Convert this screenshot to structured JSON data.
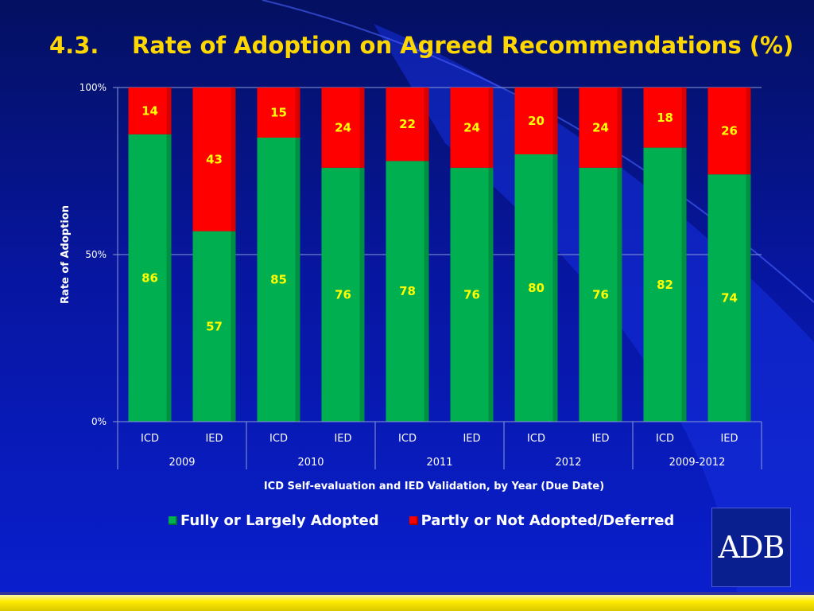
{
  "slide": {
    "number": "4.3.",
    "title": "Rate of Adoption on Agreed Recommendations (%)"
  },
  "colors": {
    "adopted": "#00b050",
    "not_adopted": "#ff0000",
    "title": "#ffd700",
    "value_label": "#ffff00"
  },
  "chart_data": {
    "type": "bar",
    "stacked": true,
    "title": "Rate of Adoption on Agreed Recommendations (%)",
    "ylabel": "Rate of Adoption",
    "xlabel": "ICD Self-evaluation and IED Validation, by Year (Due Date)",
    "ylim": [
      0,
      100
    ],
    "y_ticks": [
      "0%",
      "50%",
      "100%"
    ],
    "categories": [
      "ICD",
      "IED",
      "ICD",
      "IED",
      "ICD",
      "IED",
      "ICD",
      "IED",
      "ICD",
      "IED"
    ],
    "groups": [
      {
        "label": "2009",
        "span": 2
      },
      {
        "label": "2010",
        "span": 2
      },
      {
        "label": "2011",
        "span": 2
      },
      {
        "label": "2012",
        "span": 2
      },
      {
        "label": "2009-2012",
        "span": 2
      }
    ],
    "series": [
      {
        "name": "Fully or Largely Adopted",
        "color": "#00b050",
        "values": [
          86,
          57,
          85,
          76,
          78,
          76,
          80,
          76,
          82,
          74
        ]
      },
      {
        "name": "Partly or Not Adopted/Deferred",
        "color": "#ff0000",
        "values": [
          14,
          43,
          15,
          24,
          22,
          24,
          20,
          24,
          18,
          26
        ]
      }
    ],
    "legend_position": "bottom",
    "grid": true
  },
  "legend": {
    "adopted": "Fully or Largely Adopted",
    "not_adopted": "Partly or Not Adopted/Deferred"
  },
  "logo": {
    "text": "ADB"
  }
}
